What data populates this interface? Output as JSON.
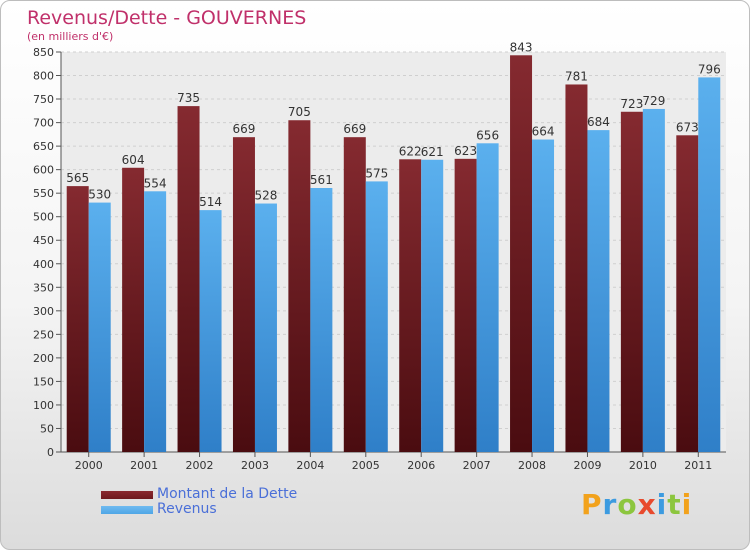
{
  "title": "Revenus/Dette - GOUVERNES",
  "subtitle": "(en milliers d'€)",
  "colors": {
    "dette": "#6e1a1f",
    "revenus": "#4fa6e6",
    "title": "#c0306a",
    "legend_text": "#4a6fd8"
  },
  "logo": {
    "text": "Proxiti"
  },
  "chart_data": {
    "type": "bar",
    "title": "Revenus/Dette - GOUVERNES",
    "subtitle": "(en milliers d'€)",
    "categories": [
      "2000",
      "2001",
      "2002",
      "2003",
      "2004",
      "2005",
      "2006",
      "2007",
      "2008",
      "2009",
      "2010",
      "2011"
    ],
    "series": [
      {
        "name": "Montant de la Dette",
        "values": [
          565,
          604,
          735,
          669,
          705,
          669,
          622,
          623,
          843,
          781,
          723,
          673
        ]
      },
      {
        "name": "Revenus",
        "values": [
          530,
          554,
          514,
          528,
          561,
          575,
          621,
          656,
          664,
          684,
          729,
          796
        ]
      }
    ],
    "ylim": [
      0,
      850
    ],
    "yticks": [
      0,
      50,
      100,
      150,
      200,
      250,
      300,
      350,
      400,
      450,
      500,
      550,
      600,
      650,
      700,
      750,
      800,
      850
    ],
    "grid": true,
    "legend_position": "bottom-left"
  }
}
